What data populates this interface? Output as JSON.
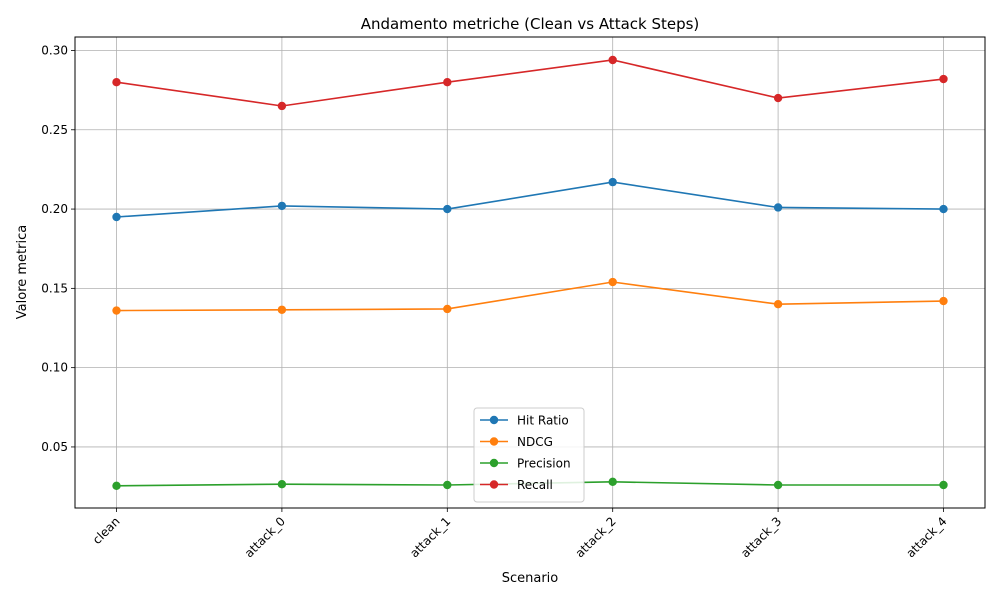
{
  "chart_data": {
    "type": "line",
    "title": "Andamento metriche (Clean vs Attack Steps)",
    "xlabel": "Scenario",
    "ylabel": "Valore metrica",
    "categories": [
      "clean",
      "attack_0",
      "attack_1",
      "attack_2",
      "attack_3",
      "attack_4"
    ],
    "ylim": [
      0.0115,
      0.3085
    ],
    "yticks": [
      0.05,
      0.1,
      0.15,
      0.2,
      0.25,
      0.3
    ],
    "ytick_labels": [
      "0.05",
      "0.10",
      "0.15",
      "0.20",
      "0.25",
      "0.30"
    ],
    "grid": true,
    "legend_position": "lower center",
    "marker": "circle",
    "series": [
      {
        "name": "Hit Ratio",
        "color": "#1f77b4",
        "values": [
          0.195,
          0.202,
          0.2,
          0.217,
          0.201,
          0.2
        ]
      },
      {
        "name": "NDCG",
        "color": "#ff7f0e",
        "values": [
          0.136,
          0.1365,
          0.137,
          0.154,
          0.14,
          0.142
        ]
      },
      {
        "name": "Precision",
        "color": "#2ca02c",
        "values": [
          0.0255,
          0.0265,
          0.026,
          0.028,
          0.026,
          0.026
        ]
      },
      {
        "name": "Recall",
        "color": "#d62728",
        "values": [
          0.28,
          0.265,
          0.28,
          0.294,
          0.27,
          0.282
        ]
      }
    ]
  }
}
